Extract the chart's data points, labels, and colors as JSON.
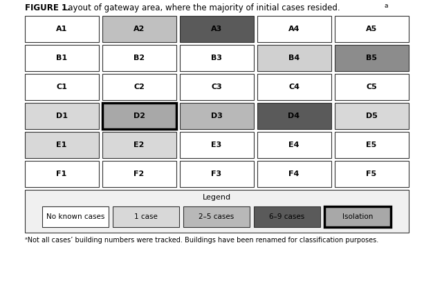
{
  "title_bold": "FIGURE 1.",
  "title_normal": " Layout of gateway area, where the majority of initial cases resided.",
  "title_super": "a",
  "footnote": "ᵃNot all cases’ building numbers were tracked. Buildings have been renamed for classification purposes.",
  "rows": [
    "A",
    "B",
    "C",
    "D",
    "E",
    "F"
  ],
  "cols": [
    1,
    2,
    3,
    4,
    5
  ],
  "cells": {
    "A1": {
      "fill": "#ffffff",
      "border": "#333333",
      "border_width": 0.8,
      "isolation": false
    },
    "A2": {
      "fill": "#c0c0c0",
      "border": "#333333",
      "border_width": 0.8,
      "isolation": false
    },
    "A3": {
      "fill": "#5a5a5a",
      "border": "#333333",
      "border_width": 0.8,
      "isolation": false
    },
    "A4": {
      "fill": "#ffffff",
      "border": "#333333",
      "border_width": 0.8,
      "isolation": false
    },
    "A5": {
      "fill": "#ffffff",
      "border": "#333333",
      "border_width": 0.8,
      "isolation": false
    },
    "B1": {
      "fill": "#ffffff",
      "border": "#333333",
      "border_width": 0.8,
      "isolation": false
    },
    "B2": {
      "fill": "#ffffff",
      "border": "#333333",
      "border_width": 0.8,
      "isolation": false
    },
    "B3": {
      "fill": "#ffffff",
      "border": "#333333",
      "border_width": 0.8,
      "isolation": false
    },
    "B4": {
      "fill": "#d0d0d0",
      "border": "#333333",
      "border_width": 0.8,
      "isolation": false
    },
    "B5": {
      "fill": "#8c8c8c",
      "border": "#333333",
      "border_width": 0.8,
      "isolation": false
    },
    "C1": {
      "fill": "#ffffff",
      "border": "#333333",
      "border_width": 0.8,
      "isolation": false
    },
    "C2": {
      "fill": "#ffffff",
      "border": "#333333",
      "border_width": 0.8,
      "isolation": false
    },
    "C3": {
      "fill": "#ffffff",
      "border": "#333333",
      "border_width": 0.8,
      "isolation": false
    },
    "C4": {
      "fill": "#ffffff",
      "border": "#333333",
      "border_width": 0.8,
      "isolation": false
    },
    "C5": {
      "fill": "#ffffff",
      "border": "#333333",
      "border_width": 0.8,
      "isolation": false
    },
    "D1": {
      "fill": "#d8d8d8",
      "border": "#333333",
      "border_width": 0.8,
      "isolation": false
    },
    "D2": {
      "fill": "#a8a8a8",
      "border": "#000000",
      "border_width": 2.5,
      "isolation": true
    },
    "D3": {
      "fill": "#b8b8b8",
      "border": "#333333",
      "border_width": 0.8,
      "isolation": false
    },
    "D4": {
      "fill": "#5a5a5a",
      "border": "#333333",
      "border_width": 0.8,
      "isolation": false
    },
    "D5": {
      "fill": "#d8d8d8",
      "border": "#333333",
      "border_width": 0.8,
      "isolation": false
    },
    "E1": {
      "fill": "#d8d8d8",
      "border": "#333333",
      "border_width": 0.8,
      "isolation": false
    },
    "E2": {
      "fill": "#d8d8d8",
      "border": "#333333",
      "border_width": 0.8,
      "isolation": false
    },
    "E3": {
      "fill": "#ffffff",
      "border": "#333333",
      "border_width": 0.8,
      "isolation": false
    },
    "E4": {
      "fill": "#ffffff",
      "border": "#333333",
      "border_width": 0.8,
      "isolation": false
    },
    "E5": {
      "fill": "#ffffff",
      "border": "#333333",
      "border_width": 0.8,
      "isolation": false
    },
    "F1": {
      "fill": "#ffffff",
      "border": "#333333",
      "border_width": 0.8,
      "isolation": false
    },
    "F2": {
      "fill": "#ffffff",
      "border": "#333333",
      "border_width": 0.8,
      "isolation": false
    },
    "F3": {
      "fill": "#ffffff",
      "border": "#333333",
      "border_width": 0.8,
      "isolation": false
    },
    "F4": {
      "fill": "#ffffff",
      "border": "#333333",
      "border_width": 0.8,
      "isolation": false
    },
    "F5": {
      "fill": "#ffffff",
      "border": "#333333",
      "border_width": 0.8,
      "isolation": false
    }
  },
  "legend_items": [
    {
      "label": "No known cases",
      "fill": "#ffffff",
      "border": "#333333",
      "border_width": 0.8
    },
    {
      "label": "1 case",
      "fill": "#d8d8d8",
      "border": "#333333",
      "border_width": 0.8
    },
    {
      "label": "2–5 cases",
      "fill": "#b8b8b8",
      "border": "#333333",
      "border_width": 0.8
    },
    {
      "label": "6–9 cases",
      "fill": "#5a5a5a",
      "border": "#333333",
      "border_width": 0.8
    },
    {
      "label": "Isolation",
      "fill": "#a8a8a8",
      "border": "#000000",
      "border_width": 2.5
    }
  ],
  "bg_color": "#ffffff",
  "text_color": "#000000",
  "cell_font_size": 8,
  "legend_font_size": 7.5,
  "title_font_size": 8.5,
  "footnote_font_size": 7
}
